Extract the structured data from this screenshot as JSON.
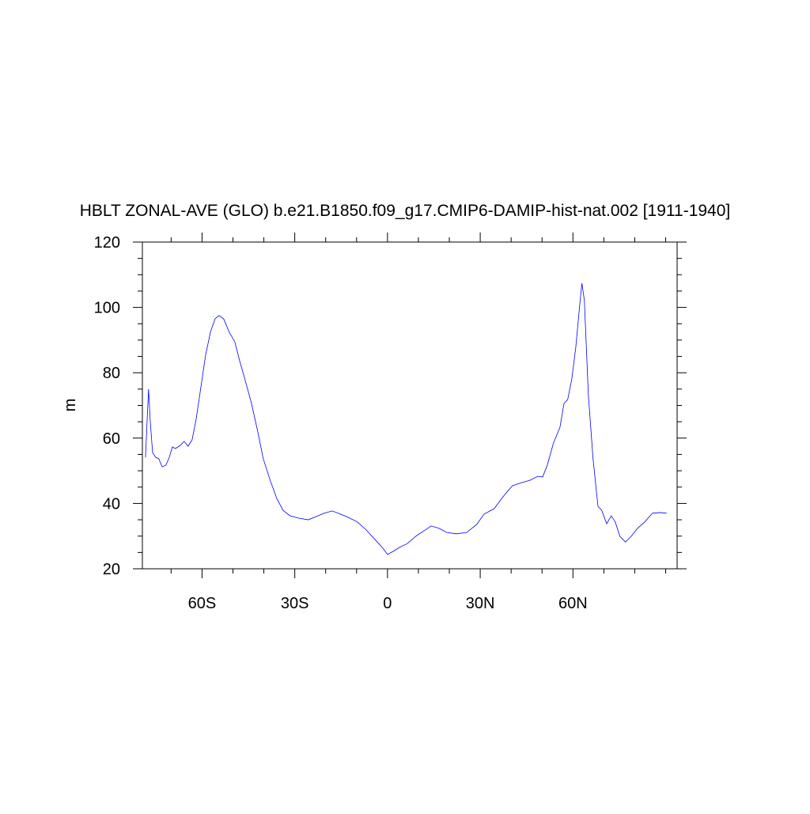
{
  "chart_data": {
    "type": "line",
    "title": "HBLT ZONAL-AVE (GLO) b.e21.B1850.f09_g17.CMIP6-DAMIP-hist-nat.002 [1911-1940]",
    "y_label": "m",
    "xlim": [
      -79.3,
      93.7
    ],
    "ylim": [
      20,
      120
    ],
    "xticks": [
      {
        "value": -60,
        "label": "60S"
      },
      {
        "value": -30,
        "label": "30S"
      },
      {
        "value": 0,
        "label": "0"
      },
      {
        "value": 30,
        "label": "30N"
      },
      {
        "value": 60,
        "label": "60N"
      }
    ],
    "yticks": [
      20,
      40,
      60,
      80,
      100,
      120
    ],
    "xminorticks": [
      -70,
      -50,
      -40,
      -20,
      -10,
      10,
      20,
      40,
      50,
      70,
      80,
      90
    ],
    "yminorticks": [
      25,
      30,
      35,
      45,
      50,
      55,
      65,
      70,
      75,
      85,
      90,
      95,
      105,
      110,
      115
    ],
    "series": [
      {
        "color": "#0000ff",
        "x": [
          -78.3,
          -77.3,
          -76.8,
          -76,
          -75,
          -74,
          -72.9,
          -71.7,
          -70.6,
          -69.6,
          -68.6,
          -67,
          -65.8,
          -64.5,
          -63.2,
          -61.9,
          -60.4,
          -58.9,
          -57.3,
          -55.8,
          -54.5,
          -53,
          -51.2,
          -49.4,
          -47.9,
          -46.1,
          -44,
          -42,
          -40.2,
          -37.9,
          -35.8,
          -33.8,
          -31.5,
          -28.7,
          -25.6,
          -23,
          -20.5,
          -17.9,
          -15.4,
          -12.8,
          -9.7,
          -6.9,
          -3.8,
          -1.5,
          0,
          1.8,
          3.8,
          6.4,
          9.5,
          12.3,
          14.1,
          16.6,
          19.2,
          22.3,
          25.6,
          28.9,
          31.2,
          34.5,
          37.6,
          40.4,
          43.5,
          46.1,
          48.6,
          50.2,
          51.7,
          53.7,
          55.8,
          57.1,
          58.3,
          59.6,
          60.9,
          62.2,
          62.9,
          63.7,
          65,
          66.5,
          68.1,
          69.3,
          70.9,
          72.4,
          73.7,
          75.2,
          77,
          78.8,
          80.9,
          83.2,
          85.7,
          88.3,
          90.3
        ],
        "values": [
          54.1,
          75,
          65.8,
          55.6,
          54.1,
          53.7,
          51.2,
          51.7,
          54.1,
          57.3,
          56.8,
          57.8,
          59,
          57.5,
          59.5,
          65.8,
          75.4,
          85.1,
          92.4,
          96.5,
          97.5,
          96.5,
          92.4,
          89.5,
          83.9,
          77.9,
          70.6,
          62.1,
          53.7,
          46.9,
          41.5,
          37.9,
          36.2,
          35.5,
          35,
          36,
          37,
          37.7,
          36.8,
          35.8,
          34.3,
          31.9,
          28.7,
          26.3,
          24.4,
          25.3,
          26.5,
          27.7,
          30.2,
          31.9,
          33.1,
          32.4,
          31.1,
          30.7,
          31.1,
          33.6,
          36.7,
          38.4,
          42.3,
          45.4,
          46.4,
          47.1,
          48.3,
          48.1,
          51.7,
          58.5,
          63.3,
          70.6,
          71.8,
          77.9,
          87.6,
          100.9,
          107.4,
          102.1,
          73,
          53.7,
          39.1,
          37.9,
          33.8,
          36.2,
          34.3,
          29.9,
          28.2,
          29.9,
          32.4,
          34.3,
          37,
          37.2,
          37
        ]
      }
    ]
  }
}
